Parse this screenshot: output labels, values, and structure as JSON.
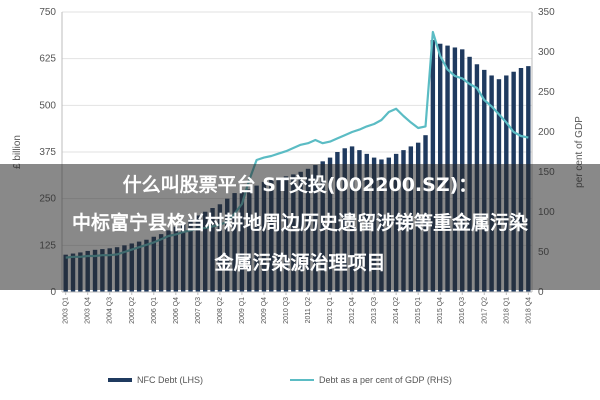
{
  "chart_data": {
    "type": "bar",
    "title": "",
    "xlabel": "",
    "ylabel": "£ billion",
    "ylabel_right": "per cent of GDP",
    "ylim": [
      0,
      750
    ],
    "ylim_right": [
      0,
      350
    ],
    "yticks_left": [
      "0",
      "125",
      "250",
      "375",
      "500",
      "625",
      "750"
    ],
    "yticks_right": [
      "0",
      "50",
      "100",
      "150",
      "200",
      "250",
      "300",
      "350"
    ],
    "x_tick_labels": [
      "2003 Q1",
      "2003 Q4",
      "2004 Q3",
      "2005 Q2",
      "2006 Q1",
      "2006 Q4",
      "2007 Q3",
      "2008 Q2",
      "2009 Q1",
      "2009 Q4",
      "2010 Q3",
      "2011 Q2",
      "2012 Q1",
      "2012 Q4",
      "2013 Q3",
      "2014 Q2",
      "2015 Q1",
      "2015 Q4",
      "2016 Q3",
      "2017 Q2",
      "2018 Q1",
      "2018 Q4"
    ],
    "categories": [
      "2003 Q1",
      "2003 Q2",
      "2003 Q3",
      "2003 Q4",
      "2004 Q1",
      "2004 Q2",
      "2004 Q3",
      "2004 Q4",
      "2005 Q1",
      "2005 Q2",
      "2005 Q3",
      "2005 Q4",
      "2006 Q1",
      "2006 Q2",
      "2006 Q3",
      "2006 Q4",
      "2007 Q1",
      "2007 Q2",
      "2007 Q3",
      "2007 Q4",
      "2008 Q1",
      "2008 Q2",
      "2008 Q3",
      "2008 Q4",
      "2009 Q1",
      "2009 Q2",
      "2009 Q3",
      "2009 Q4",
      "2010 Q1",
      "2010 Q2",
      "2010 Q3",
      "2010 Q4",
      "2011 Q1",
      "2011 Q2",
      "2011 Q3",
      "2011 Q4",
      "2012 Q1",
      "2012 Q2",
      "2012 Q3",
      "2012 Q4",
      "2013 Q1",
      "2013 Q2",
      "2013 Q3",
      "2013 Q4",
      "2014 Q1",
      "2014 Q2",
      "2014 Q3",
      "2014 Q4",
      "2015 Q1",
      "2015 Q2",
      "2015 Q3",
      "2015 Q4",
      "2016 Q1",
      "2016 Q2",
      "2016 Q3",
      "2016 Q4",
      "2017 Q1",
      "2017 Q2",
      "2017 Q3",
      "2017 Q4",
      "2018 Q1",
      "2018 Q2",
      "2018 Q3",
      "2018 Q4"
    ],
    "series": [
      {
        "name": "NFC Debt (LHS)",
        "type": "bar",
        "axis": "left",
        "color": "#1f3a5f",
        "values": [
          100,
          103,
          106,
          110,
          113,
          115,
          117,
          120,
          125,
          130,
          135,
          140,
          148,
          155,
          165,
          175,
          185,
          195,
          205,
          215,
          225,
          235,
          250,
          265,
          270,
          275,
          285,
          295,
          300,
          305,
          310,
          315,
          322,
          330,
          340,
          350,
          360,
          375,
          385,
          390,
          380,
          370,
          360,
          355,
          360,
          370,
          380,
          390,
          400,
          420,
          675,
          665,
          660,
          655,
          650,
          630,
          610,
          595,
          580,
          570,
          580,
          590,
          600,
          605
        ]
      },
      {
        "name": "Debt as a per cent of GDP (RHS)",
        "type": "line",
        "axis": "right",
        "color": "#5bbcc4",
        "values": [
          43,
          44,
          44,
          45,
          45,
          46,
          46,
          47,
          50,
          53,
          56,
          59,
          62,
          66,
          70,
          72,
          75,
          77,
          79,
          80,
          82,
          84,
          88,
          98,
          110,
          140,
          165,
          168,
          170,
          173,
          176,
          180,
          184,
          186,
          190,
          186,
          188,
          192,
          196,
          200,
          203,
          207,
          210,
          215,
          225,
          229,
          220,
          212,
          205,
          207,
          325,
          295,
          278,
          270,
          267,
          260,
          255,
          240,
          232,
          222,
          212,
          200,
          195,
          193
        ]
      }
    ],
    "legend": [
      "NFC Debt (LHS)",
      "Debt as a per cent of GDP (RHS)"
    ],
    "legend_position": "bottom"
  },
  "overlay": {
    "line1": "什么叫股票平台 ST交投(002200.SZ)：",
    "line2": "中标富宁县格当村耕地周边历史遗留涉锑等重金属污染",
    "line3": "金属污染源治理项目"
  }
}
